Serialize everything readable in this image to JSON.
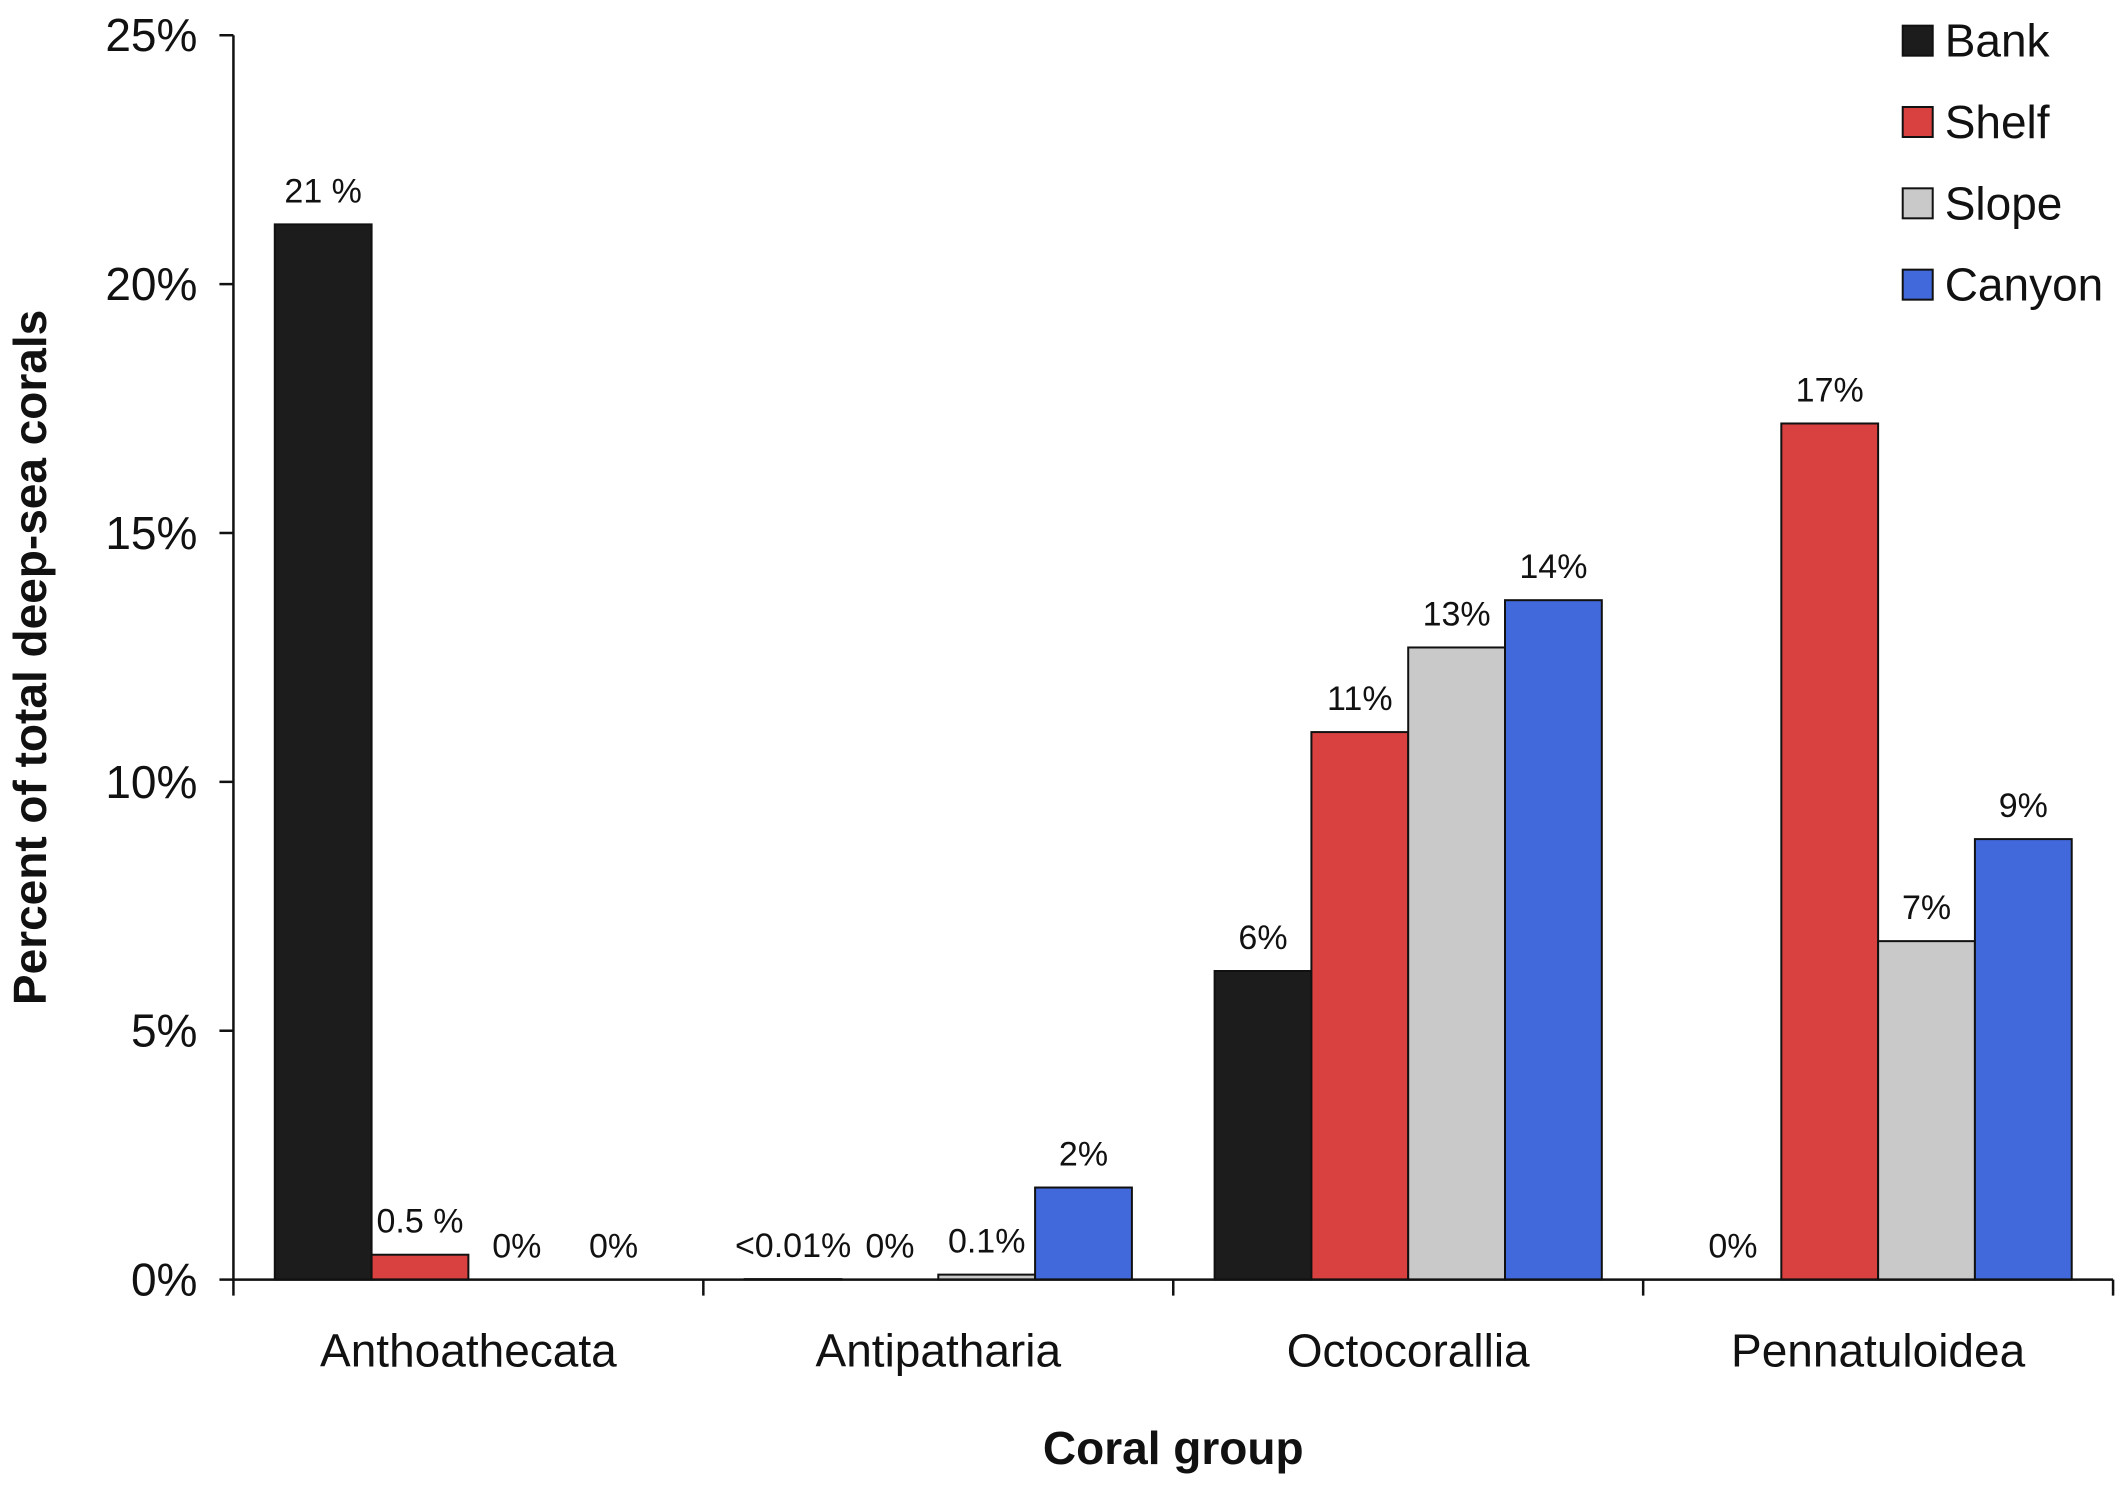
{
  "chart_data": {
    "type": "bar",
    "xlabel": "Coral group",
    "ylabel": "Percent of total deep-sea corals",
    "ylim": [
      0,
      25
    ],
    "yticks": [
      0,
      5,
      10,
      15,
      20,
      25
    ],
    "ytick_labels": [
      "0%",
      "5%",
      "10%",
      "15%",
      "20%",
      "25%"
    ],
    "categories": [
      "Anthoathecata",
      "Antipatharia",
      "Octocorallia",
      "Pennatuloidea"
    ],
    "legend_position": "top-right",
    "grid": false,
    "series": [
      {
        "name": "Bank",
        "color": "#1c1c1c",
        "values": [
          21.2,
          0.01,
          6.2,
          0
        ],
        "labels": [
          "21 %",
          "<0.01%",
          "6%",
          "0%"
        ]
      },
      {
        "name": "Shelf",
        "color": "#d94040",
        "values": [
          0.5,
          0,
          11.0,
          17.2
        ],
        "labels": [
          "0.5 %",
          "0%",
          "11%",
          "17%"
        ]
      },
      {
        "name": "Slope",
        "color": "#c9c9c9",
        "values": [
          0,
          0.1,
          12.7,
          6.8
        ],
        "labels": [
          "0%",
          "0.1%",
          "13%",
          "7%"
        ]
      },
      {
        "name": "Canyon",
        "color": "#4169dc",
        "values": [
          0,
          1.85,
          13.65,
          8.85
        ],
        "labels": [
          "0%",
          "2%",
          "14%",
          "9%"
        ]
      }
    ]
  }
}
